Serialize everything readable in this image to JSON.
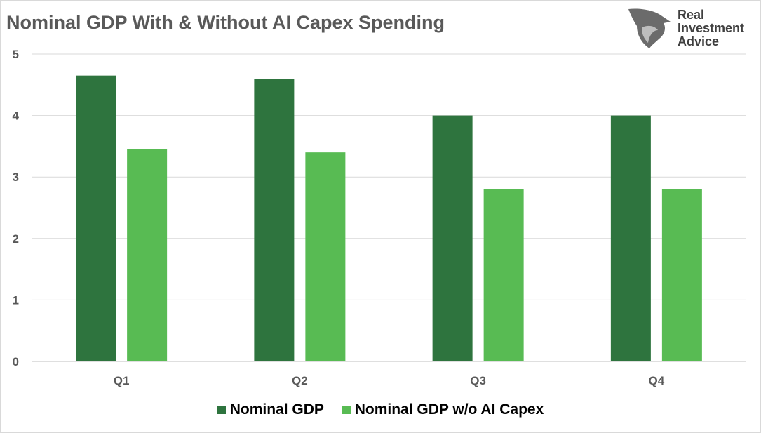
{
  "chart_data": {
    "type": "bar",
    "title": "Nominal GDP With & Without AI Capex Spending",
    "categories": [
      "Q1",
      "Q2",
      "Q3",
      "Q4"
    ],
    "series": [
      {
        "name": "Nominal GDP",
        "color": "#2e743e",
        "values": [
          4.65,
          4.6,
          4.0,
          4.0
        ]
      },
      {
        "name": "Nominal GDP w/o AI Capex",
        "color": "#58bb53",
        "values": [
          3.45,
          3.4,
          2.8,
          2.8
        ]
      }
    ],
    "ylim": [
      0,
      5
    ],
    "yticks": [
      "0",
      "1",
      "2",
      "3",
      "4",
      "5"
    ],
    "grid": true,
    "legend": "bottom"
  },
  "logo": {
    "text": [
      "Real",
      "Investment",
      "Advice"
    ]
  }
}
